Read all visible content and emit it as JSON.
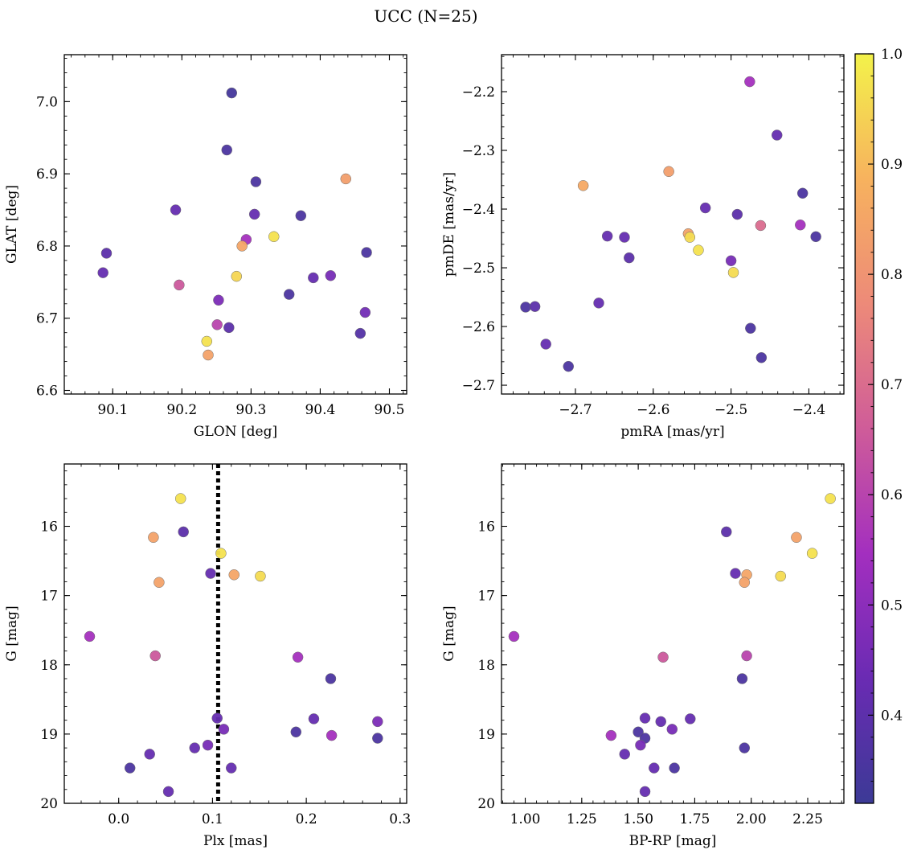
{
  "figure": {
    "title": "UCC (N=25)"
  },
  "colorbar": {
    "min": 0.32,
    "max": 1.0,
    "ticks": [
      0.4,
      0.5,
      0.6,
      0.7,
      0.8,
      0.9,
      1.0
    ],
    "tick_labels": [
      "0.4",
      "0.5",
      "0.6",
      "0.7",
      "0.8",
      "0.9",
      "1.0"
    ],
    "colormap": "plasma",
    "colormap_stops": [
      "#3c3a96",
      "#6a2bb3",
      "#a32fbf",
      "#cf5c99",
      "#ed8a79",
      "#f7b25e",
      "#f3f24a"
    ]
  },
  "chart_data": [
    {
      "type": "scatter",
      "xlabel": "GLON [deg]",
      "ylabel": "GLAT [deg]",
      "xlim": [
        90.03,
        90.525
      ],
      "ylim": [
        6.595,
        7.065
      ],
      "xticks": [
        90.1,
        90.2,
        90.3,
        90.4,
        90.5
      ],
      "xtick_labels": [
        "90.1",
        "90.2",
        "90.3",
        "90.4",
        "90.5"
      ],
      "yticks": [
        6.6,
        6.7,
        6.8,
        6.9,
        7.0
      ],
      "ytick_labels": [
        "6.6",
        "6.7",
        "6.8",
        "6.9",
        "7.0"
      ],
      "points": [
        {
          "x": 90.272,
          "y": 7.012,
          "c": 0.34
        },
        {
          "x": 90.265,
          "y": 6.933,
          "c": 0.36
        },
        {
          "x": 90.307,
          "y": 6.889,
          "c": 0.36
        },
        {
          "x": 90.437,
          "y": 6.893,
          "c": 0.83
        },
        {
          "x": 90.191,
          "y": 6.85,
          "c": 0.42
        },
        {
          "x": 90.305,
          "y": 6.844,
          "c": 0.42
        },
        {
          "x": 90.372,
          "y": 6.842,
          "c": 0.36
        },
        {
          "x": 90.333,
          "y": 6.813,
          "c": 0.97
        },
        {
          "x": 90.293,
          "y": 6.809,
          "c": 0.55
        },
        {
          "x": 90.287,
          "y": 6.8,
          "c": 0.85
        },
        {
          "x": 90.467,
          "y": 6.791,
          "c": 0.36
        },
        {
          "x": 90.091,
          "y": 6.79,
          "c": 0.4
        },
        {
          "x": 90.086,
          "y": 6.763,
          "c": 0.42
        },
        {
          "x": 90.39,
          "y": 6.756,
          "c": 0.42
        },
        {
          "x": 90.415,
          "y": 6.759,
          "c": 0.46
        },
        {
          "x": 90.279,
          "y": 6.758,
          "c": 0.95
        },
        {
          "x": 90.196,
          "y": 6.746,
          "c": 0.65
        },
        {
          "x": 90.355,
          "y": 6.733,
          "c": 0.36
        },
        {
          "x": 90.253,
          "y": 6.725,
          "c": 0.47
        },
        {
          "x": 90.465,
          "y": 6.708,
          "c": 0.45
        },
        {
          "x": 90.251,
          "y": 6.691,
          "c": 0.6
        },
        {
          "x": 90.268,
          "y": 6.687,
          "c": 0.4
        },
        {
          "x": 90.458,
          "y": 6.679,
          "c": 0.38
        },
        {
          "x": 90.236,
          "y": 6.668,
          "c": 0.97
        },
        {
          "x": 90.238,
          "y": 6.649,
          "c": 0.84
        }
      ]
    },
    {
      "type": "scatter",
      "xlabel": "pmRA [mas/yr]",
      "ylabel": "pmDE [mas/yr]",
      "xlim": [
        -2.795,
        -2.355
      ],
      "ylim": [
        -2.715,
        -2.137
      ],
      "xticks": [
        -2.7,
        -2.6,
        -2.5,
        -2.4
      ],
      "xtick_labels": [
        "−2.7",
        "−2.6",
        "−2.5",
        "−2.4"
      ],
      "yticks": [
        -2.7,
        -2.6,
        -2.5,
        -2.4,
        -2.3,
        -2.2
      ],
      "ytick_labels": [
        "−2.7",
        "−2.6",
        "−2.5",
        "−2.4",
        "−2.3",
        "−2.2"
      ],
      "points": [
        {
          "x": -2.476,
          "y": -2.183,
          "c": 0.55
        },
        {
          "x": -2.441,
          "y": -2.274,
          "c": 0.42
        },
        {
          "x": -2.58,
          "y": -2.336,
          "c": 0.83
        },
        {
          "x": -2.69,
          "y": -2.36,
          "c": 0.86
        },
        {
          "x": -2.408,
          "y": -2.373,
          "c": 0.36
        },
        {
          "x": -2.533,
          "y": -2.398,
          "c": 0.42
        },
        {
          "x": -2.492,
          "y": -2.409,
          "c": 0.4
        },
        {
          "x": -2.462,
          "y": -2.428,
          "c": 0.7
        },
        {
          "x": -2.411,
          "y": -2.427,
          "c": 0.55
        },
        {
          "x": -2.555,
          "y": -2.442,
          "c": 0.84
        },
        {
          "x": -2.553,
          "y": -2.448,
          "c": 0.96
        },
        {
          "x": -2.659,
          "y": -2.446,
          "c": 0.42
        },
        {
          "x": -2.637,
          "y": -2.448,
          "c": 0.42
        },
        {
          "x": -2.391,
          "y": -2.447,
          "c": 0.36
        },
        {
          "x": -2.542,
          "y": -2.47,
          "c": 0.97
        },
        {
          "x": -2.631,
          "y": -2.483,
          "c": 0.4
        },
        {
          "x": -2.5,
          "y": -2.488,
          "c": 0.46
        },
        {
          "x": -2.497,
          "y": -2.508,
          "c": 0.96
        },
        {
          "x": -2.67,
          "y": -2.56,
          "c": 0.42
        },
        {
          "x": -2.764,
          "y": -2.567,
          "c": 0.36
        },
        {
          "x": -2.752,
          "y": -2.566,
          "c": 0.4
        },
        {
          "x": -2.475,
          "y": -2.603,
          "c": 0.36
        },
        {
          "x": -2.738,
          "y": -2.63,
          "c": 0.42
        },
        {
          "x": -2.461,
          "y": -2.653,
          "c": 0.36
        },
        {
          "x": -2.709,
          "y": -2.668,
          "c": 0.36
        }
      ]
    },
    {
      "type": "scatter",
      "xlabel": "Plx [mas]",
      "ylabel": "G [mag]",
      "xlim": [
        -0.058,
        0.307
      ],
      "ylim": [
        20.0,
        15.1
      ],
      "y_inverted": true,
      "xticks": [
        0.0,
        0.1,
        0.2,
        0.3
      ],
      "xtick_labels": [
        "0.0",
        "0.1",
        "0.2",
        "0.3"
      ],
      "yticks": [
        16,
        17,
        18,
        19,
        20
      ],
      "ytick_labels": [
        "16",
        "17",
        "18",
        "19",
        "20"
      ],
      "vline": {
        "x": 0.106,
        "style": "dotted",
        "color": "#000000"
      },
      "points": [
        {
          "x": 0.066,
          "y": 15.6,
          "c": 0.97
        },
        {
          "x": 0.069,
          "y": 16.08,
          "c": 0.4
        },
        {
          "x": 0.037,
          "y": 16.16,
          "c": 0.84
        },
        {
          "x": 0.109,
          "y": 16.39,
          "c": 0.97
        },
        {
          "x": 0.098,
          "y": 16.68,
          "c": 0.42
        },
        {
          "x": 0.123,
          "y": 16.7,
          "c": 0.85
        },
        {
          "x": 0.151,
          "y": 16.72,
          "c": 0.96
        },
        {
          "x": 0.043,
          "y": 16.81,
          "c": 0.84
        },
        {
          "x": -0.031,
          "y": 17.59,
          "c": 0.55
        },
        {
          "x": 0.039,
          "y": 17.87,
          "c": 0.65
        },
        {
          "x": 0.191,
          "y": 17.89,
          "c": 0.55
        },
        {
          "x": 0.226,
          "y": 18.2,
          "c": 0.36
        },
        {
          "x": 0.105,
          "y": 18.77,
          "c": 0.42
        },
        {
          "x": 0.208,
          "y": 18.78,
          "c": 0.42
        },
        {
          "x": 0.276,
          "y": 18.82,
          "c": 0.47
        },
        {
          "x": 0.112,
          "y": 18.93,
          "c": 0.46
        },
        {
          "x": 0.189,
          "y": 18.97,
          "c": 0.36
        },
        {
          "x": 0.227,
          "y": 19.02,
          "c": 0.55
        },
        {
          "x": 0.276,
          "y": 19.06,
          "c": 0.36
        },
        {
          "x": 0.095,
          "y": 19.16,
          "c": 0.46
        },
        {
          "x": 0.081,
          "y": 19.2,
          "c": 0.42
        },
        {
          "x": 0.033,
          "y": 19.29,
          "c": 0.42
        },
        {
          "x": 0.012,
          "y": 19.49,
          "c": 0.36
        },
        {
          "x": 0.12,
          "y": 19.49,
          "c": 0.42
        },
        {
          "x": 0.053,
          "y": 19.83,
          "c": 0.42
        }
      ]
    },
    {
      "type": "scatter",
      "xlabel": "BP-RP [mag]",
      "ylabel": "G [mag]",
      "xlim": [
        0.895,
        2.41
      ],
      "ylim": [
        20.0,
        15.1
      ],
      "y_inverted": true,
      "xticks": [
        1.0,
        1.25,
        1.5,
        1.75,
        2.0,
        2.25
      ],
      "xtick_labels": [
        "1.00",
        "1.25",
        "1.50",
        "1.75",
        "2.00",
        "2.25"
      ],
      "yticks": [
        16,
        17,
        18,
        19,
        20
      ],
      "ytick_labels": [
        "16",
        "17",
        "18",
        "19",
        "20"
      ],
      "points": [
        {
          "x": 2.35,
          "y": 15.6,
          "c": 0.97
        },
        {
          "x": 1.89,
          "y": 16.08,
          "c": 0.4
        },
        {
          "x": 2.2,
          "y": 16.16,
          "c": 0.84
        },
        {
          "x": 2.27,
          "y": 16.39,
          "c": 0.97
        },
        {
          "x": 1.93,
          "y": 16.68,
          "c": 0.42
        },
        {
          "x": 1.98,
          "y": 16.7,
          "c": 0.85
        },
        {
          "x": 2.13,
          "y": 16.72,
          "c": 0.96
        },
        {
          "x": 1.97,
          "y": 16.81,
          "c": 0.84
        },
        {
          "x": 0.95,
          "y": 17.59,
          "c": 0.55
        },
        {
          "x": 1.61,
          "y": 17.89,
          "c": 0.65
        },
        {
          "x": 1.98,
          "y": 17.87,
          "c": 0.6
        },
        {
          "x": 1.96,
          "y": 18.2,
          "c": 0.36
        },
        {
          "x": 1.53,
          "y": 18.77,
          "c": 0.42
        },
        {
          "x": 1.73,
          "y": 18.78,
          "c": 0.42
        },
        {
          "x": 1.6,
          "y": 18.82,
          "c": 0.42
        },
        {
          "x": 1.65,
          "y": 18.93,
          "c": 0.46
        },
        {
          "x": 1.5,
          "y": 18.97,
          "c": 0.36
        },
        {
          "x": 1.38,
          "y": 19.02,
          "c": 0.55
        },
        {
          "x": 1.53,
          "y": 19.06,
          "c": 0.36
        },
        {
          "x": 1.51,
          "y": 19.16,
          "c": 0.46
        },
        {
          "x": 1.97,
          "y": 19.2,
          "c": 0.36
        },
        {
          "x": 1.44,
          "y": 19.29,
          "c": 0.42
        },
        {
          "x": 1.57,
          "y": 19.49,
          "c": 0.42
        },
        {
          "x": 1.66,
          "y": 19.49,
          "c": 0.36
        },
        {
          "x": 1.53,
          "y": 19.83,
          "c": 0.42
        }
      ]
    }
  ]
}
